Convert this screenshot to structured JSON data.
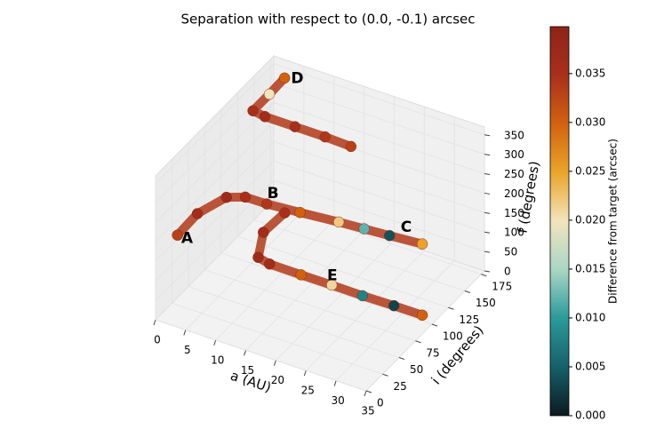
{
  "chart_data": {
    "type": "scatter3d",
    "title": "Separation with respect to (0.0, -0.1) arcsec",
    "xlabel": "a (AU)",
    "ylabel": "i (degrees)",
    "zlabel": "f (degrees)",
    "xlim": [
      0,
      35
    ],
    "ylim": [
      0,
      180
    ],
    "zlim": [
      0,
      370
    ],
    "xticks": [
      0,
      5,
      10,
      15,
      20,
      25,
      30,
      35
    ],
    "yticks": [
      0,
      25,
      50,
      75,
      100,
      125,
      150,
      175
    ],
    "zticks": [
      0,
      50,
      100,
      150,
      200,
      250,
      300,
      350
    ],
    "grid": true,
    "colorbar": {
      "label": "Difference from target (arcsec)",
      "clim": [
        0,
        0.0398
      ],
      "colormap": [
        "#0b1a20",
        "#16606a",
        "#2a9a9a",
        "#a9d6c6",
        "#f2e4bd",
        "#eaa52a",
        "#d2620f",
        "#a8301c",
        "#8e2418"
      ],
      "ticks": [
        {
          "value": 0,
          "label": "0.000"
        },
        {
          "value": 0.005,
          "label": "0.005"
        },
        {
          "value": 0.01,
          "label": "0.010"
        },
        {
          "value": 0.015,
          "label": "0.015"
        },
        {
          "value": 0.02,
          "label": "0.020"
        },
        {
          "value": 0.025,
          "label": "0.025"
        },
        {
          "value": 0.03,
          "label": "0.030"
        },
        {
          "value": 0.035,
          "label": "0.035"
        }
      ]
    },
    "tracks": [
      {
        "x": [
          1.9,
          1.5,
          2.4,
          4,
          6.8,
          12,
          18,
          22,
          26,
          31.1
        ],
        "y": [
          16,
          50,
          86,
          100,
          107,
          110,
          114,
          116,
          118,
          121
        ],
        "z": [
          200,
          195,
          180,
          165,
          150,
          150,
          150,
          150,
          150,
          150
        ],
        "c": [
          0.033,
          0.036,
          0.037,
          0.035,
          0.034,
          0.03,
          0.022,
          0.012,
          0.004,
          0.025
        ]
      },
      {
        "x": [
          3.1,
          2,
          0.8,
          3,
          8,
          13,
          17.4
        ],
        "y": [
          168,
          155,
          141,
          139,
          139,
          139,
          138
        ],
        "z": [
          350,
          325,
          300,
          300,
          300,
          300,
          300
        ],
        "c": [
          0.03,
          0.02,
          0.035,
          0.036,
          0.035,
          0.034,
          0.033
        ]
      },
      {
        "x": [
          8.7,
          7,
          8,
          10,
          15,
          20,
          25,
          30,
          34.6
        ],
        "y": [
          117,
          100,
          83,
          82,
          84,
          85,
          86,
          88,
          89
        ],
        "z": [
          120,
          90,
          60,
          55,
          50,
          48,
          45,
          42,
          40
        ],
        "c": [
          0.035,
          0.036,
          0.037,
          0.036,
          0.03,
          0.021,
          0.008,
          0.003,
          0.03
        ]
      }
    ],
    "annotations": [
      {
        "text": "A",
        "x": 3.5,
        "y": 16,
        "z": 200
      },
      {
        "text": "B",
        "x": 7.5,
        "y": 110,
        "z": 175
      },
      {
        "text": "C",
        "x": 28,
        "y": 125,
        "z": 170
      },
      {
        "text": "D",
        "x": 5,
        "y": 170,
        "z": 355
      },
      {
        "text": "E",
        "x": 19,
        "y": 95,
        "z": 50
      }
    ]
  }
}
